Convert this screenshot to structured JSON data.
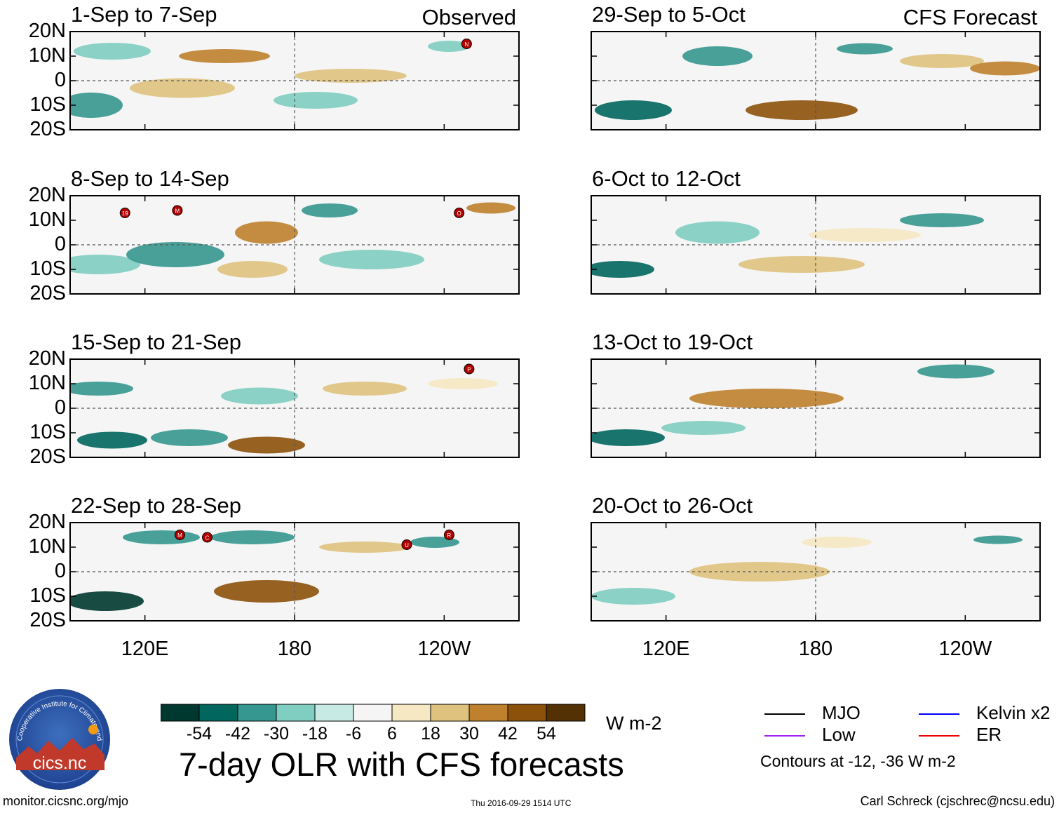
{
  "chart_data": {
    "type": "heatmap",
    "title": "7-day OLR with CFS forecasts",
    "variable": "OLR anomaly",
    "units": "W m-2",
    "contour_note": "Contours at -12, -36 W m-2",
    "lat_ticks": [
      "20N",
      "10N",
      "0",
      "10S",
      "20S"
    ],
    "lon_ticks": [
      "120E",
      "180",
      "120W"
    ],
    "lat_range": [
      -20,
      20
    ],
    "lon_range": [
      90,
      270
    ],
    "colorbar": {
      "levels": [
        -54,
        -42,
        -30,
        -18,
        -6,
        6,
        18,
        30,
        42,
        54
      ],
      "tick_labels": [
        "-54",
        "-42",
        "-30",
        "-18",
        "-6",
        "6",
        "18",
        "30",
        "42",
        "54"
      ],
      "colors": [
        "#00382f",
        "#01665e",
        "#35978f",
        "#80cdc1",
        "#c7eae5",
        "#f5f5f5",
        "#f6e8c3",
        "#dfc27d",
        "#bf812d",
        "#8c510a",
        "#543005"
      ]
    },
    "legend": [
      {
        "label": "MJO",
        "color": "#000000"
      },
      {
        "label": "Low",
        "color": "#a020f0"
      },
      {
        "label": "Kelvin x2",
        "color": "#0000ff"
      },
      {
        "label": "ER",
        "color": "#ee0000"
      }
    ],
    "panels": [
      {
        "title": "1-Sep to 7-Sep",
        "corner_label": "Observed",
        "storms": [
          {
            "id": "N",
            "lon": 249,
            "lat": 15
          }
        ]
      },
      {
        "title": "8-Sep to 14-Sep",
        "corner_label": "",
        "storms": [
          {
            "id": "19",
            "lon": 112,
            "lat": 13
          },
          {
            "id": "M",
            "lon": 133,
            "lat": 14
          },
          {
            "id": "O",
            "lon": 246,
            "lat": 13
          }
        ]
      },
      {
        "title": "15-Sep to 21-Sep",
        "corner_label": "",
        "storms": [
          {
            "id": "P",
            "lon": 250,
            "lat": 16
          }
        ]
      },
      {
        "title": "22-Sep to 28-Sep",
        "corner_label": "",
        "storms": [
          {
            "id": "M",
            "lon": 134,
            "lat": 15
          },
          {
            "id": "C",
            "lon": 145,
            "lat": 14
          },
          {
            "id": "U",
            "lon": 225,
            "lat": 11
          },
          {
            "id": "R",
            "lon": 242,
            "lat": 15
          }
        ]
      },
      {
        "title": "29-Sep to 5-Oct",
        "corner_label": "CFS Forecast",
        "storms": []
      },
      {
        "title": "6-Oct to 12-Oct",
        "corner_label": "",
        "storms": []
      },
      {
        "title": "13-Oct to 19-Oct",
        "corner_label": "",
        "storms": []
      },
      {
        "title": "20-Oct to 26-Oct",
        "corner_label": "",
        "storms": []
      }
    ]
  },
  "logo": {
    "text": "cics.nc",
    "ring_text": "Cooperative Institute for Climate and Satellites"
  },
  "footer": {
    "left": "monitor.cicsnc.org/mjo",
    "center": "Thu 2016-09-29 1514 UTC",
    "right": "Carl Schreck (cjschrec@ncsu.edu)"
  }
}
